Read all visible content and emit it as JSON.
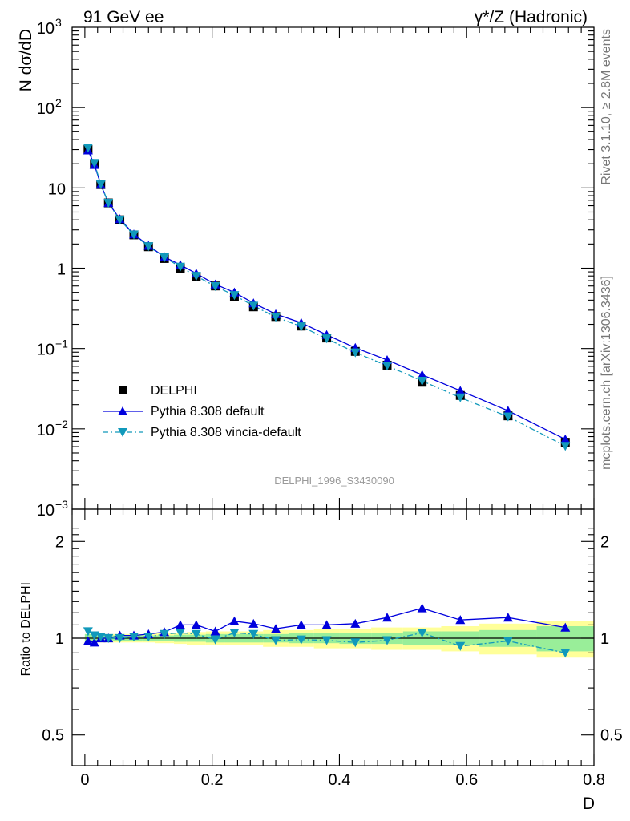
{
  "header": {
    "left": "91 GeV ee",
    "right": "γ*/Z (Hadronic)"
  },
  "side_labels": {
    "rivet": "Rivet 3.1.10, ≥ 2.8M events",
    "mcplots": "mcplots.cern.ch [arXiv:1306.3436]"
  },
  "analysis_id": "DELPHI_1996_S3430090",
  "axes": {
    "top_ylabel": "N dσ/dD",
    "bottom_ylabel": "Ratio to DELPHI",
    "xlabel": "D",
    "x_ticks": [
      "0",
      "0.2",
      "0.4",
      "0.6",
      "0.8"
    ],
    "top_y_ticks": [
      {
        "base": "10",
        "exp": "−3"
      },
      {
        "base": "10",
        "exp": "−2"
      },
      {
        "base": "10",
        "exp": "−1"
      },
      {
        "base": "1",
        "exp": ""
      },
      {
        "base": "10",
        "exp": ""
      },
      {
        "base": "10",
        "exp": "2"
      },
      {
        "base": "10",
        "exp": "3"
      }
    ],
    "ratio_y_ticks": [
      "0.5",
      "1",
      "2"
    ]
  },
  "legend": {
    "data": "DELPHI",
    "mc1": "Pythia 8.308 default",
    "mc2": "Pythia 8.308 vincia-default"
  },
  "chart_data": {
    "type": "scatter",
    "x_scale": "linear",
    "xlim": [
      -0.02,
      0.8
    ],
    "top_ylim": [
      0.001,
      1000
    ],
    "top_y_scale": "log",
    "ratio_ylim": [
      0.35,
      2.3
    ],
    "ratio_y_scale": "log",
    "x": [
      0.005,
      0.015,
      0.025,
      0.037,
      0.055,
      0.077,
      0.1,
      0.125,
      0.15,
      0.175,
      0.205,
      0.235,
      0.265,
      0.3,
      0.34,
      0.38,
      0.425,
      0.475,
      0.53,
      0.59,
      0.665,
      0.755
    ],
    "bin_edges": [
      0.0,
      0.01,
      0.02,
      0.03,
      0.045,
      0.065,
      0.09,
      0.11,
      0.14,
      0.16,
      0.19,
      0.22,
      0.25,
      0.28,
      0.32,
      0.36,
      0.4,
      0.45,
      0.5,
      0.56,
      0.62,
      0.71,
      0.8
    ],
    "series": [
      {
        "name": "DELPHI",
        "color": "#000000",
        "values": [
          30,
          20,
          11,
          6.5,
          4.0,
          2.6,
          1.85,
          1.32,
          1.0,
          0.78,
          0.6,
          0.44,
          0.33,
          0.25,
          0.19,
          0.135,
          0.092,
          0.062,
          0.038,
          0.026,
          0.0145,
          0.0068
        ],
        "band_inner": [
          0.03,
          0.02,
          0.02,
          0.02,
          0.02,
          0.02,
          0.02,
          0.02,
          0.025,
          0.025,
          0.03,
          0.03,
          0.03,
          0.03,
          0.035,
          0.035,
          0.04,
          0.04,
          0.05,
          0.05,
          0.06,
          0.09
        ],
        "band_outer": [
          0.03,
          0.03,
          0.03,
          0.03,
          0.03,
          0.03,
          0.03,
          0.035,
          0.04,
          0.045,
          0.05,
          0.05,
          0.05,
          0.06,
          0.06,
          0.07,
          0.07,
          0.08,
          0.08,
          0.09,
          0.11,
          0.13
        ]
      },
      {
        "name": "Pythia 8.308 default",
        "color": "#0000dd",
        "values": [
          29.4,
          19.4,
          11.0,
          6.5,
          4.1,
          2.65,
          1.91,
          1.38,
          1.1,
          0.86,
          0.63,
          0.5,
          0.367,
          0.268,
          0.209,
          0.148,
          0.102,
          0.072,
          0.047,
          0.0298,
          0.0168,
          0.0074
        ],
        "ratio": [
          0.98,
          0.97,
          1.0,
          1.0,
          1.02,
          1.02,
          1.03,
          1.045,
          1.1,
          1.1,
          1.05,
          1.13,
          1.11,
          1.07,
          1.1,
          1.1,
          1.11,
          1.16,
          1.24,
          1.14,
          1.16,
          1.08
        ]
      },
      {
        "name": "Pythia 8.308 vincia-default",
        "color": "#1199bb",
        "values": [
          31.5,
          20.4,
          11.1,
          6.5,
          4.0,
          2.62,
          1.87,
          1.36,
          1.04,
          0.8,
          0.595,
          0.46,
          0.34,
          0.246,
          0.188,
          0.133,
          0.089,
          0.061,
          0.0395,
          0.0245,
          0.0142,
          0.0061
        ],
        "ratio": [
          1.05,
          1.02,
          1.01,
          1.0,
          1.0,
          1.01,
          1.01,
          1.03,
          1.04,
          1.03,
          0.99,
          1.04,
          1.03,
          0.985,
          0.99,
          0.985,
          0.97,
          0.985,
          1.04,
          0.945,
          0.98,
          0.9
        ]
      }
    ]
  }
}
